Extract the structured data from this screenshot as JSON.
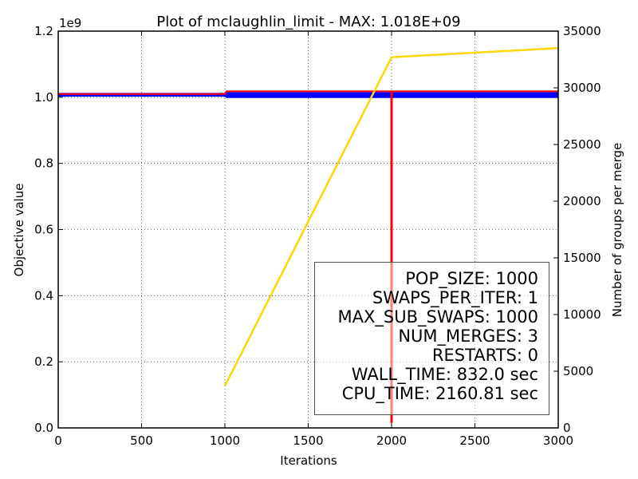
{
  "chart_data": {
    "type": "line",
    "title": "Plot of mclaughlin_limit - MAX: 1.018E+09",
    "xlabel": "Iterations",
    "ylabel": "Objective value",
    "y2label": "Number of groups per merge",
    "y_offset_label": "1e9",
    "xlim": [
      0,
      3000
    ],
    "ylim": [
      0,
      1.2
    ],
    "y2lim": [
      0,
      35000
    ],
    "x_ticks": [
      0,
      500,
      1000,
      1500,
      2000,
      2500,
      3000
    ],
    "y_ticks": [
      0.0,
      0.2,
      0.4,
      0.6,
      0.8,
      1.0,
      1.2
    ],
    "y2_ticks": [
      0,
      5000,
      10000,
      15000,
      20000,
      25000,
      30000,
      35000
    ],
    "grid": true,
    "series": [
      {
        "axis": "left",
        "color": "#0000ff",
        "band": [
          [
            0,
            1.003,
            1.012
          ],
          [
            1000,
            1.003,
            1.012
          ],
          [
            1010,
            0.999,
            1.014
          ],
          [
            3000,
            0.999,
            1.014
          ]
        ]
      },
      {
        "axis": "left",
        "color": "#ff0000",
        "x": [
          0,
          1000,
          1010,
          2000,
          3000
        ],
        "values": [
          1.01,
          1.01,
          1.018,
          1.018,
          1.018
        ]
      },
      {
        "axis": "right",
        "color": "#ffd700",
        "x": [
          1000,
          2000,
          3000
        ],
        "values": [
          3700,
          32700,
          33500
        ]
      }
    ],
    "vline": {
      "x": 2000,
      "from": 0.015,
      "to": 1.018,
      "color": "#ff0000"
    }
  },
  "stats_box": {
    "lines": [
      "POP_SIZE: 1000",
      "SWAPS_PER_ITER: 1",
      "MAX_SUB_SWAPS: 1000",
      "NUM_MERGES: 3",
      "RESTARTS: 0",
      "WALL_TIME: 832.0 sec",
      "CPU_TIME: 2160.81 sec"
    ]
  }
}
